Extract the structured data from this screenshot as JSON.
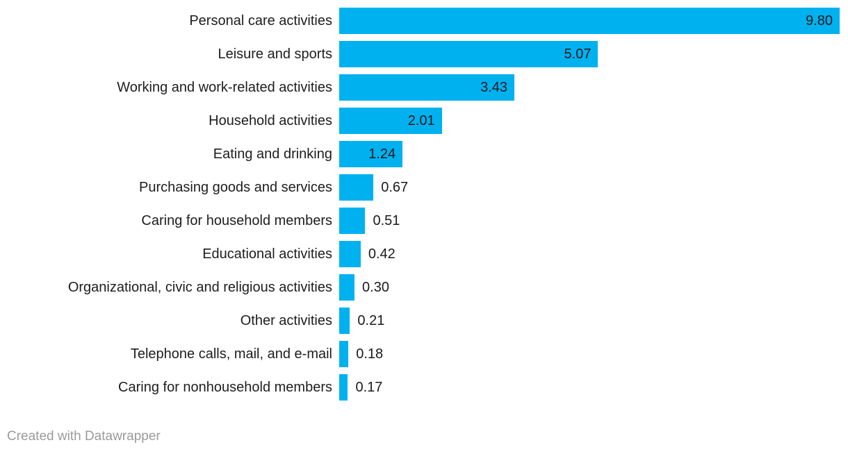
{
  "chart_data": {
    "type": "bar",
    "orientation": "horizontal",
    "title": "",
    "xlabel": "",
    "ylabel": "",
    "xlim": [
      0,
      9.8
    ],
    "grid": false,
    "legend": false,
    "categories": [
      "Personal care activities",
      "Leisure and sports",
      "Working and work-related activities",
      "Household activities",
      "Eating and drinking",
      "Purchasing goods and services",
      "Caring for household members",
      "Educational activities",
      "Organizational, civic and religious activities",
      "Other activities",
      "Telephone calls, mail, and e-mail",
      "Caring for nonhousehold members"
    ],
    "values": [
      9.8,
      5.07,
      3.43,
      2.01,
      1.24,
      0.67,
      0.51,
      0.42,
      0.3,
      0.21,
      0.18,
      0.17
    ],
    "value_labels": [
      "9.80",
      "5.07",
      "3.43",
      "2.01",
      "1.24",
      "0.67",
      "0.51",
      "0.42",
      "0.30",
      "0.21",
      "0.18",
      "0.17"
    ],
    "value_label_placement": "inside-end for wide bars, outside-end for narrow bars",
    "colors": {
      "bar": "#00b1f0",
      "category_label": "#1d1d1d",
      "value_label": "#1a1a1a"
    }
  },
  "footer": {
    "attribution": "Created with Datawrapper",
    "color": "#9b9b9b"
  }
}
